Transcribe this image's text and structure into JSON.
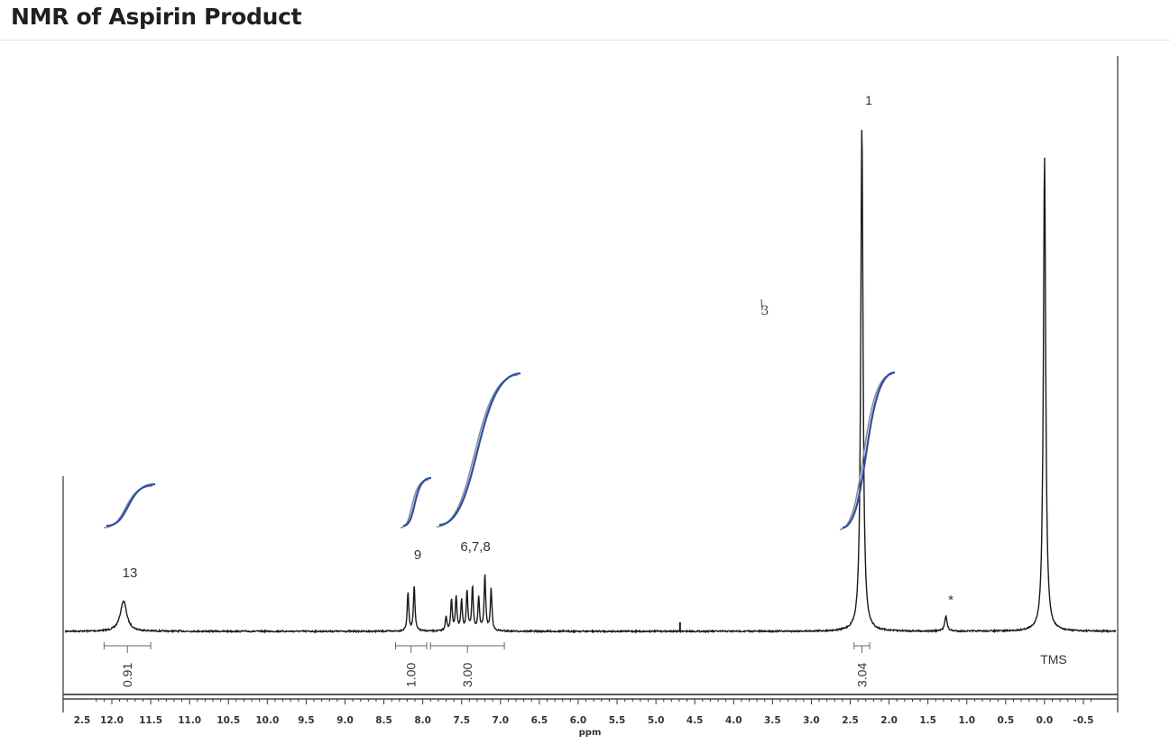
{
  "title": "NMR of Aspirin Product",
  "chart_data": {
    "type": "line",
    "title": "NMR of Aspirin Product",
    "xlabel": "ppm",
    "ylabel": "",
    "x_reversed": true,
    "xlim": [
      2.5,
      -0.5
    ],
    "xticks": [
      "2.5",
      "12.0",
      "11.5",
      "11.0",
      "10.5",
      "10.0",
      "9.5",
      "9.0",
      "8.5",
      "8.0",
      "7.5",
      "7.0",
      "6.5",
      "6.0",
      "5.5",
      "5.0",
      "4.5",
      "4.0",
      "3.5",
      "3.0",
      "2.5",
      "2.0",
      "1.5",
      "1.0",
      "0.5",
      "0.0",
      "-0.5"
    ],
    "grid": false,
    "peaks": [
      {
        "ppm": 11.85,
        "label": "13",
        "rel_height": 0.06
      },
      {
        "ppm": 8.15,
        "label": "9",
        "rel_height": 0.09
      },
      {
        "ppm": 7.4,
        "label": "6,7,8",
        "rel_height": 0.11
      },
      {
        "ppm": 2.35,
        "label": "1",
        "rel_height": 1.0
      },
      {
        "ppm": 1.27,
        "label": "*",
        "rel_height": 0.03
      },
      {
        "ppm": 0.0,
        "label": "",
        "rel_height": 0.94
      }
    ],
    "integrals": [
      {
        "from": 12.1,
        "to": 11.5,
        "value": "0.91"
      },
      {
        "from": 8.35,
        "to": 7.95,
        "value": "1.00"
      },
      {
        "from": 7.9,
        "to": 6.95,
        "value": "3.00"
      },
      {
        "from": 2.45,
        "to": 2.25,
        "value": "3.04"
      }
    ],
    "reference_label": "TMS",
    "handwritten_note": "3"
  },
  "colors": {
    "spectrum": "#1a1a1a",
    "integral_curve": "#2b4fa8",
    "integral_shadow": "#8c8c8c",
    "text": "#333333"
  }
}
